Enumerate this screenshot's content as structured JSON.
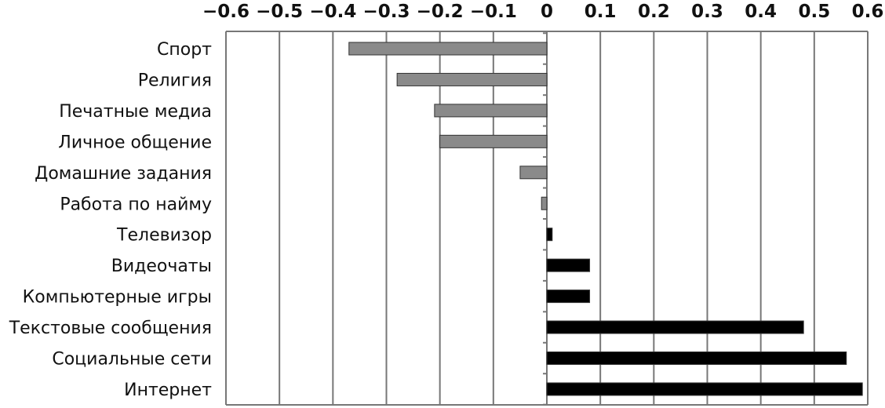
{
  "chart_data": {
    "type": "bar",
    "orientation": "horizontal",
    "categories": [
      "Спорт",
      "Религия",
      "Печатные медиа",
      "Личное общение",
      "Домашние задания",
      "Работа по найму",
      "Телевизор",
      "Видеочаты",
      "Компьютерные игры",
      "Текстовые сообщения",
      "Социальные сети",
      "Интернет"
    ],
    "values": [
      -0.37,
      -0.28,
      -0.21,
      -0.2,
      -0.05,
      -0.01,
      0.01,
      0.08,
      0.08,
      0.48,
      0.56,
      0.59
    ],
    "xlim": [
      -0.6,
      0.6
    ],
    "x_ticks": [
      -0.6,
      -0.5,
      -0.4,
      -0.3,
      -0.2,
      -0.1,
      0,
      0.1,
      0.2,
      0.3,
      0.4,
      0.5,
      0.6
    ],
    "x_tick_labels": [
      "−0.6",
      "−0.5",
      "−0.4",
      "−0.3",
      "−0.2",
      "−0.1",
      "0",
      "0.1",
      "0.2",
      "0.3",
      "0.4",
      "0.5",
      "0.6"
    ],
    "tick_position": "top",
    "grid": true,
    "negative_color": "#8a8a8a",
    "positive_color": "#000000",
    "title": "",
    "xlabel": "",
    "ylabel": ""
  }
}
